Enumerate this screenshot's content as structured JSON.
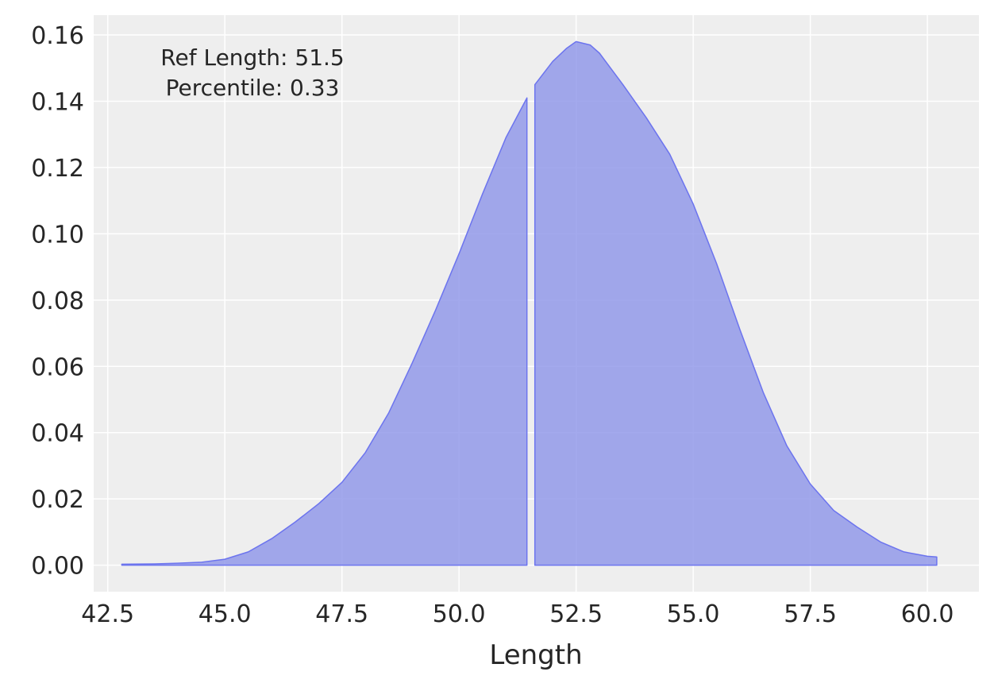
{
  "chart_data": {
    "type": "area",
    "title": "",
    "xlabel": "Length",
    "ylabel": "",
    "xlim": [
      42.2,
      61.1
    ],
    "ylim": [
      -0.008,
      0.166
    ],
    "grid": true,
    "legend": "none",
    "colors": {
      "fill": "#8c94e8",
      "edge": "#6c74ee",
      "plot_bg": "#eeeeee",
      "grid": "#ffffff",
      "text": "#262626"
    },
    "xticks": [
      {
        "value": 42.5,
        "label": "42.5"
      },
      {
        "value": 45.0,
        "label": "45.0"
      },
      {
        "value": 47.5,
        "label": "47.5"
      },
      {
        "value": 50.0,
        "label": "50.0"
      },
      {
        "value": 52.5,
        "label": "52.5"
      },
      {
        "value": 55.0,
        "label": "55.0"
      },
      {
        "value": 57.5,
        "label": "57.5"
      },
      {
        "value": 60.0,
        "label": "60.0"
      }
    ],
    "yticks": [
      {
        "value": 0.0,
        "label": "0.00"
      },
      {
        "value": 0.02,
        "label": "0.02"
      },
      {
        "value": 0.04,
        "label": "0.04"
      },
      {
        "value": 0.06,
        "label": "0.06"
      },
      {
        "value": 0.08,
        "label": "0.08"
      },
      {
        "value": 0.1,
        "label": "0.10"
      },
      {
        "value": 0.12,
        "label": "0.12"
      },
      {
        "value": 0.14,
        "label": "0.14"
      },
      {
        "value": 0.16,
        "label": "0.16"
      }
    ],
    "annotation": [
      "Ref Length: 51.5",
      "Percentile: 0.33"
    ],
    "series": [
      {
        "x": [
          42.8,
          43.5,
          44.0,
          44.5,
          45.0,
          45.5,
          46.0,
          46.5,
          47.0,
          47.5,
          48.0,
          48.5,
          49.0,
          49.5,
          50.0,
          50.5,
          51.0,
          51.45
        ],
        "y": [
          0.0003,
          0.0004,
          0.0006,
          0.0009,
          0.0018,
          0.004,
          0.008,
          0.013,
          0.0185,
          0.025,
          0.034,
          0.046,
          0.061,
          0.077,
          0.094,
          0.112,
          0.129,
          0.141
        ]
      },
      {
        "x": [
          51.62,
          52.0,
          52.3,
          52.5,
          52.8,
          53.0,
          53.5,
          54.0,
          54.5,
          55.0,
          55.5,
          56.0,
          56.5,
          57.0,
          57.5,
          58.0,
          58.5,
          59.0,
          59.5,
          60.0,
          60.2
        ],
        "y": [
          0.145,
          0.152,
          0.156,
          0.158,
          0.157,
          0.1545,
          0.145,
          0.135,
          0.124,
          0.109,
          0.091,
          0.071,
          0.052,
          0.036,
          0.0245,
          0.0165,
          0.0115,
          0.007,
          0.004,
          0.0027,
          0.0025
        ]
      }
    ]
  }
}
